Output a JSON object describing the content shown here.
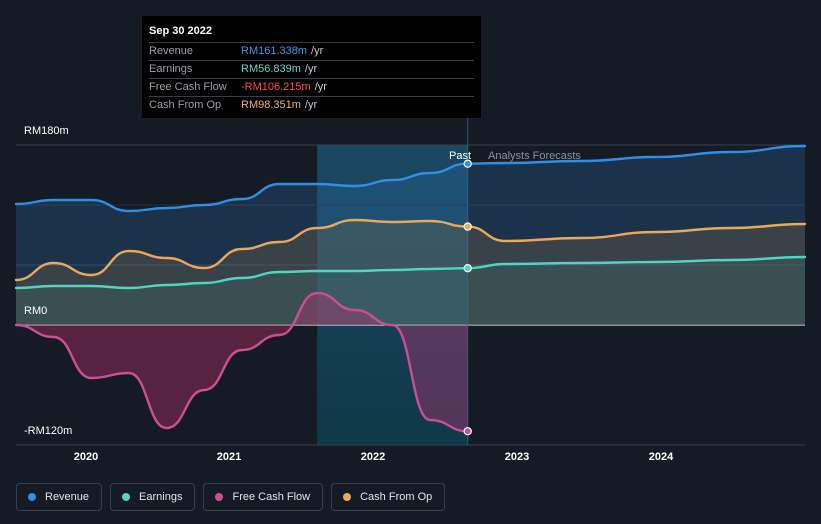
{
  "tooltip": {
    "date": "Sep 30 2022",
    "rows": [
      {
        "label": "Revenue",
        "value": "RM161.338m",
        "unit": "/yr",
        "color": "#3b9ae8"
      },
      {
        "label": "Earnings",
        "value": "RM56.839m",
        "unit": "/yr",
        "color": "#5fd9c6"
      },
      {
        "label": "Free Cash Flow",
        "value": "-RM106.215m",
        "unit": "/yr",
        "color": "#ff4d4d"
      },
      {
        "label": "Cash From Op",
        "value": "RM98.351m",
        "unit": "/yr",
        "color": "#f2b26a"
      }
    ]
  },
  "markers": {
    "past": "Past",
    "forecast": "Analysts Forecasts"
  },
  "legend": [
    {
      "label": "Revenue",
      "color": "#2f8fe6"
    },
    {
      "label": "Earnings",
      "color": "#4fd6c0"
    },
    {
      "label": "Free Cash Flow",
      "color": "#cc4f93"
    },
    {
      "label": "Cash From Op",
      "color": "#e9a85c"
    }
  ],
  "chart_data": {
    "type": "area",
    "y_tick_labels": [
      "RM180m",
      "RM0",
      "-RM120m"
    ],
    "x_tick_labels": [
      "2020",
      "2021",
      "2022",
      "2023",
      "2024"
    ],
    "ylim": [
      -120,
      180
    ],
    "xlim": [
      2019.75,
      2024.99
    ],
    "past_end": 2022.75,
    "highlight_start": 2021.75,
    "series": [
      {
        "name": "Revenue",
        "color": "#2f8fe6",
        "x": [
          2019.75,
          2020.0,
          2020.25,
          2020.5,
          2020.75,
          2021.0,
          2021.25,
          2021.5,
          2021.75,
          2022.0,
          2022.25,
          2022.5,
          2022.75,
          2023.0,
          2023.5,
          2024.0,
          2024.5,
          2024.99
        ],
        "values": [
          121,
          125,
          125,
          114,
          117,
          120,
          126,
          141,
          141,
          139,
          145,
          152,
          161.3,
          162,
          164,
          168,
          173,
          179
        ]
      },
      {
        "name": "Earnings",
        "color": "#4fd6c0",
        "x": [
          2019.75,
          2020.0,
          2020.25,
          2020.5,
          2020.75,
          2021.0,
          2021.25,
          2021.5,
          2021.75,
          2022.0,
          2022.25,
          2022.5,
          2022.75,
          2023.0,
          2023.5,
          2024.0,
          2024.5,
          2024.99
        ],
        "values": [
          37,
          39,
          39,
          37,
          40,
          42,
          47,
          53,
          54,
          54,
          55,
          56,
          56.8,
          61,
          62,
          63,
          65,
          68
        ]
      },
      {
        "name": "Free Cash Flow",
        "color": "#cc4f93",
        "x": [
          2019.75,
          2020.0,
          2020.25,
          2020.5,
          2020.75,
          2021.0,
          2021.25,
          2021.5,
          2021.75,
          2022.0,
          2022.25,
          2022.5,
          2022.75
        ],
        "values": [
          0,
          -12,
          -53,
          -48,
          -103,
          -65,
          -25,
          -10,
          32,
          15,
          0,
          -95,
          -106.2
        ]
      },
      {
        "name": "Cash From Op",
        "color": "#e9a85c",
        "x": [
          2019.75,
          2020.0,
          2020.25,
          2020.5,
          2020.75,
          2021.0,
          2021.25,
          2021.5,
          2021.75,
          2022.0,
          2022.25,
          2022.5,
          2022.75,
          2023.0,
          2023.5,
          2024.0,
          2024.5,
          2024.99
        ],
        "values": [
          45,
          62,
          50,
          74,
          67,
          57,
          76,
          83,
          97,
          105,
          103,
          104,
          98.4,
          84,
          87,
          93,
          97,
          101
        ]
      }
    ]
  }
}
